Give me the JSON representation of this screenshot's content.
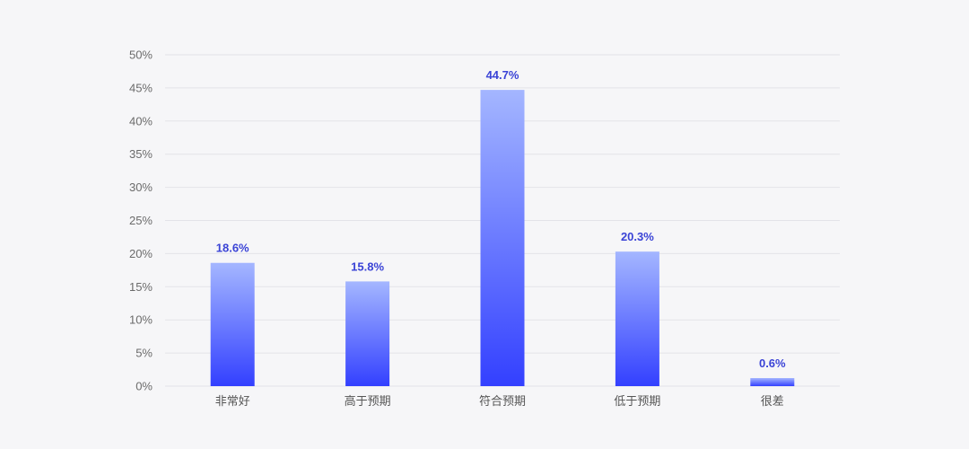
{
  "colors": {
    "background": "#f6f6f8",
    "bar_top": "#a4b6ff",
    "bar_bottom": "#3340ff",
    "data_label": "#3a43d6",
    "grid": "#e3e3e8",
    "tick_text": "#6b6b6b"
  },
  "chart_data": {
    "type": "bar",
    "categories": [
      "非常好",
      "高于预期",
      "符合预期",
      "低于预期",
      "很差"
    ],
    "values": [
      18.6,
      15.8,
      44.7,
      20.3,
      0.6
    ],
    "data_labels": [
      "18.6%",
      "15.8%",
      "44.7%",
      "20.3%",
      "0.6%"
    ],
    "y_ticks": [
      0,
      5,
      10,
      15,
      20,
      25,
      30,
      35,
      40,
      45,
      50
    ],
    "y_tick_labels": [
      "0%",
      "5%",
      "10%",
      "15%",
      "20%",
      "25%",
      "30%",
      "35%",
      "40%",
      "45%",
      "50%"
    ],
    "ylim": [
      0,
      50
    ],
    "unit": "%",
    "title": "",
    "xlabel": "",
    "ylabel": "",
    "grid": true,
    "legend": false
  }
}
